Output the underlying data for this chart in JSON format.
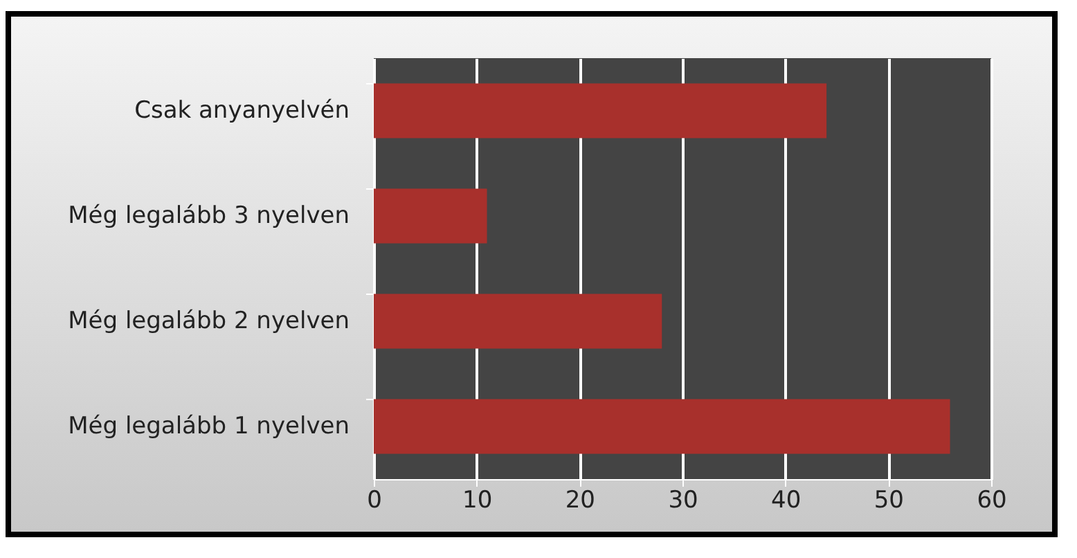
{
  "chart_data": {
    "type": "bar",
    "orientation": "horizontal",
    "categories": [
      "Csak anyanyelvén",
      "Még legalább 3 nyelven",
      "Még legalább 2 nyelven",
      "Még legalább 1 nyelven"
    ],
    "values": [
      44,
      11,
      28,
      56
    ],
    "color": "#a8302c",
    "xlim": [
      0,
      60
    ],
    "xticks": [
      0,
      10,
      20,
      30,
      40,
      50,
      60
    ],
    "grid": "x"
  }
}
